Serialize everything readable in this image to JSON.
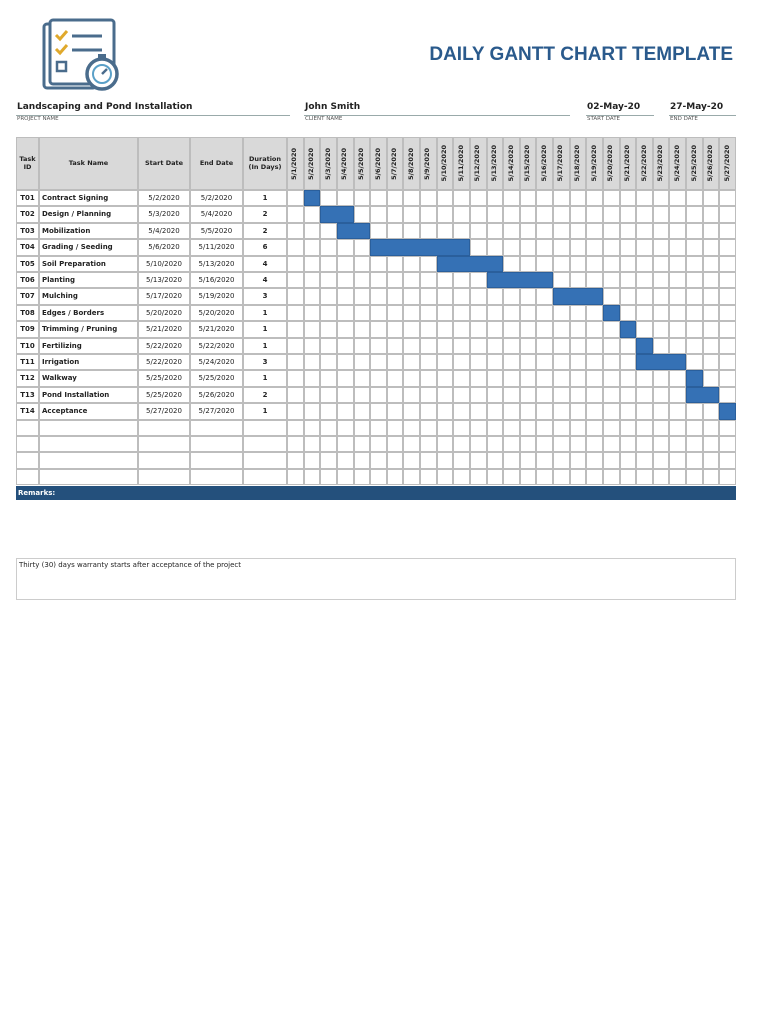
{
  "header": {
    "title": "DAILY GANTT CHART TEMPLATE"
  },
  "project": {
    "project_name": {
      "value": "Landscaping and Pond Installation",
      "label": "PROJECT NAME"
    },
    "client_name": {
      "value": "John Smith",
      "label": "CLIENT NAME"
    },
    "start_date": {
      "value": "02-May-20",
      "label": "START DATE"
    },
    "end_date": {
      "value": "27-May-20",
      "label": "END DATE"
    }
  },
  "table": {
    "columns": [
      "Task ID",
      "Task Name",
      "Start Date",
      "End Date",
      "Duration (In Days)"
    ],
    "dates": [
      "5/1/2020",
      "5/2/2020",
      "5/3/2020",
      "5/4/2020",
      "5/5/2020",
      "5/6/2020",
      "5/7/2020",
      "5/8/2020",
      "5/9/2020",
      "5/10/2020",
      "5/11/2020",
      "5/12/2020",
      "5/13/2020",
      "5/14/2020",
      "5/15/2020",
      "5/16/2020",
      "5/17/2020",
      "5/18/2020",
      "5/19/2020",
      "5/20/2020",
      "5/21/2020",
      "5/22/2020",
      "5/23/2020",
      "5/24/2020",
      "5/25/2020",
      "5/26/2020",
      "5/27/2020"
    ],
    "tasks": [
      {
        "id": "T01",
        "name": "Contract Signing",
        "start": "5/2/2020",
        "end": "5/2/2020",
        "duration": 1
      },
      {
        "id": "T02",
        "name": "Design / Planning",
        "start": "5/3/2020",
        "end": "5/4/2020",
        "duration": 2
      },
      {
        "id": "T03",
        "name": "Mobilization",
        "start": "5/4/2020",
        "end": "5/5/2020",
        "duration": 2
      },
      {
        "id": "T04",
        "name": "Grading / Seeding",
        "start": "5/6/2020",
        "end": "5/11/2020",
        "duration": 6
      },
      {
        "id": "T05",
        "name": "Soil Preparation",
        "start": "5/10/2020",
        "end": "5/13/2020",
        "duration": 4
      },
      {
        "id": "T06",
        "name": "Planting",
        "start": "5/13/2020",
        "end": "5/16/2020",
        "duration": 4
      },
      {
        "id": "T07",
        "name": "Mulching",
        "start": "5/17/2020",
        "end": "5/19/2020",
        "duration": 3
      },
      {
        "id": "T08",
        "name": "Edges / Borders",
        "start": "5/20/2020",
        "end": "5/20/2020",
        "duration": 1
      },
      {
        "id": "T09",
        "name": "Trimming / Pruning",
        "start": "5/21/2020",
        "end": "5/21/2020",
        "duration": 1
      },
      {
        "id": "T10",
        "name": "Fertilizing",
        "start": "5/22/2020",
        "end": "5/22/2020",
        "duration": 1
      },
      {
        "id": "T11",
        "name": "Irrigation",
        "start": "5/22/2020",
        "end": "5/24/2020",
        "duration": 3
      },
      {
        "id": "T12",
        "name": "Walkway",
        "start": "5/25/2020",
        "end": "5/25/2020",
        "duration": 1
      },
      {
        "id": "T13",
        "name": "Pond Installation",
        "start": "5/25/2020",
        "end": "5/26/2020",
        "duration": 2
      },
      {
        "id": "T14",
        "name": "Acceptance",
        "start": "5/27/2020",
        "end": "5/27/2020",
        "duration": 1
      }
    ]
  },
  "remarks": {
    "label": "Remarks:",
    "text": "Thirty (30) days warranty starts after acceptance of the project"
  }
}
